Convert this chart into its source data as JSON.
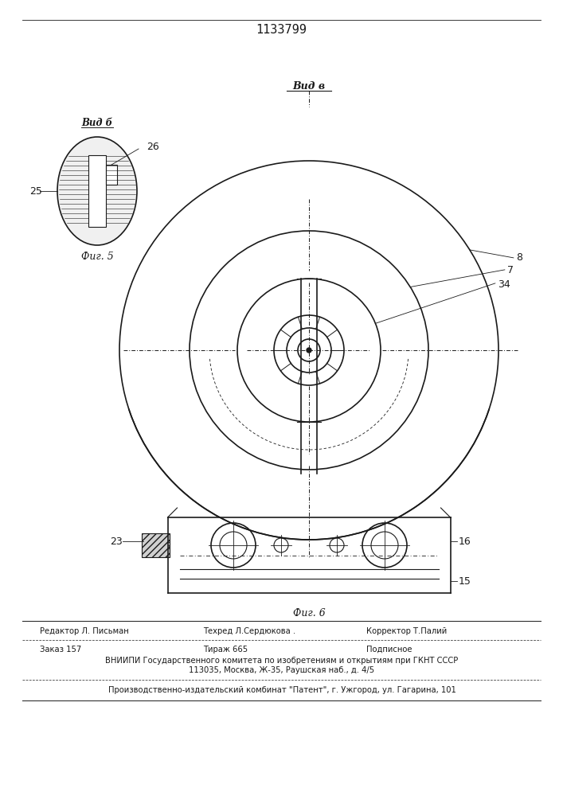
{
  "title": "1133799",
  "fig5_label": "Вид б",
  "fig6_label": "Вид в",
  "fig5_caption": "Фиг. 5",
  "fig6_caption": "Фиг. 6",
  "line_color": "#1a1a1a",
  "text_bottom": [
    "Редактор Л. Письман     Техред Л.Сердюкова .      Корректор Т.Палий",
    "Заказ 157                       Тираж 665                       Подписное",
    "ВНИИПИ Государственного комитета по изобретениям и открытиям при ГКНТ СССР",
    "113035, Москва, Ж-35, Раушская наб., д. 4/5",
    "Производственно-издательский комбинат \"Патент\", г. Ужгород, ул. Гагарина, 101"
  ]
}
